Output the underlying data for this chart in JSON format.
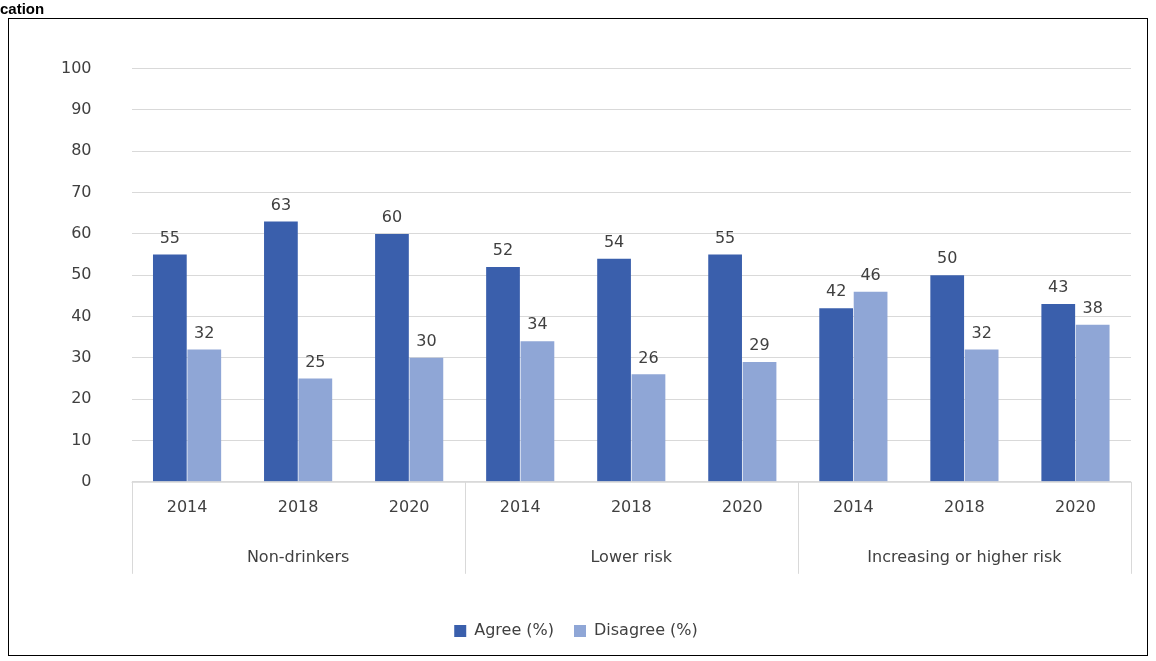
{
  "chart_data": {
    "type": "bar",
    "title": "cation",
    "categories": [
      "2014",
      "2018",
      "2020",
      "2014",
      "2018",
      "2020",
      "2014",
      "2018",
      "2020"
    ],
    "series": [
      {
        "name": "Agree (%)",
        "color": "#3a5fac",
        "values": [
          55,
          63,
          60,
          52,
          54,
          55,
          42,
          50,
          43
        ]
      },
      {
        "name": "Disagree (%)",
        "color": "#8fa6d6",
        "values": [
          32,
          25,
          30,
          34,
          26,
          29,
          46,
          32,
          38
        ]
      }
    ],
    "annotations": [
      "Non-drinkers",
      "Lower risk",
      "Increasing or higher risk"
    ],
    "ylim": [
      0,
      100
    ],
    "yticks": [
      0,
      10,
      20,
      30,
      40,
      50,
      60,
      70,
      80,
      90,
      100
    ],
    "grid": "y",
    "legend": "bottom",
    "data_labels": true
  }
}
